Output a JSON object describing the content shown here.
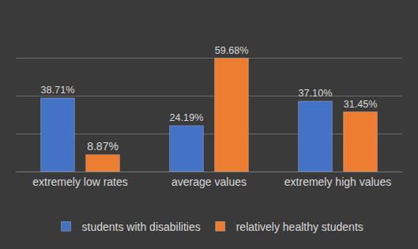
{
  "chart_data": {
    "type": "bar",
    "categories": [
      "extremely low rates",
      "average values",
      "extremely high values"
    ],
    "series": [
      {
        "name": "students with disabilities",
        "color": "#4472c4",
        "values": [
          38.71,
          24.19,
          37.1
        ],
        "value_labels": [
          "38.71%",
          "24.19%",
          "37.10%"
        ]
      },
      {
        "name": "relatively healthy students",
        "color": "#ed7d31",
        "values": [
          8.87,
          59.68,
          31.45
        ],
        "value_labels": [
          "8.87%",
          "59.68%",
          "31.45%"
        ]
      }
    ],
    "ylim": [
      0,
      80
    ],
    "yticks": [
      0,
      20,
      40,
      60,
      80
    ],
    "grid": true,
    "legend": "bottom",
    "data_labels": true,
    "tick_labels": "x"
  }
}
